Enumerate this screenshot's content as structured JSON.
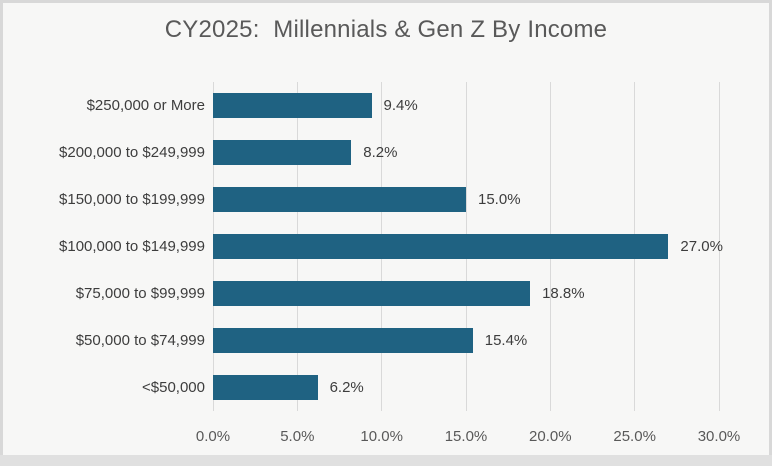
{
  "title": "CY2025:  Millennials & Gen Z By Income",
  "colors": {
    "bar": "#1f6282",
    "gridline": "#d9d9d9",
    "title_text": "#595959",
    "label_text": "#3d3d3d",
    "tick_text": "#595959",
    "background": "#f7f7f6",
    "frame": "#d8d8d8"
  },
  "chart_data": {
    "type": "bar",
    "orientation": "horizontal",
    "title": "CY2025:  Millennials & Gen Z By Income",
    "categories": [
      "$250,000 or More",
      "$200,000 to $249,999",
      "$150,000 to $199,999",
      "$100,000 to $149,999",
      "$75,000 to $99,999",
      "$50,000 to $74,999",
      "<$50,000"
    ],
    "values": [
      9.4,
      8.2,
      15.0,
      27.0,
      18.8,
      15.4,
      6.2
    ],
    "data_labels": [
      "9.4%",
      "8.2%",
      "15.0%",
      "27.0%",
      "18.8%",
      "15.4%",
      "6.2%"
    ],
    "xlabel": "",
    "ylabel": "",
    "xlim": [
      0,
      30
    ],
    "x_tick_values": [
      0,
      5,
      10,
      15,
      20,
      25,
      30
    ],
    "x_tick_labels": [
      "0.0%",
      "5.0%",
      "10.0%",
      "15.0%",
      "20.0%",
      "25.0%",
      "30.0%"
    ],
    "grid": "vertical",
    "legend": "none",
    "data_labels_position": "outside-end"
  }
}
